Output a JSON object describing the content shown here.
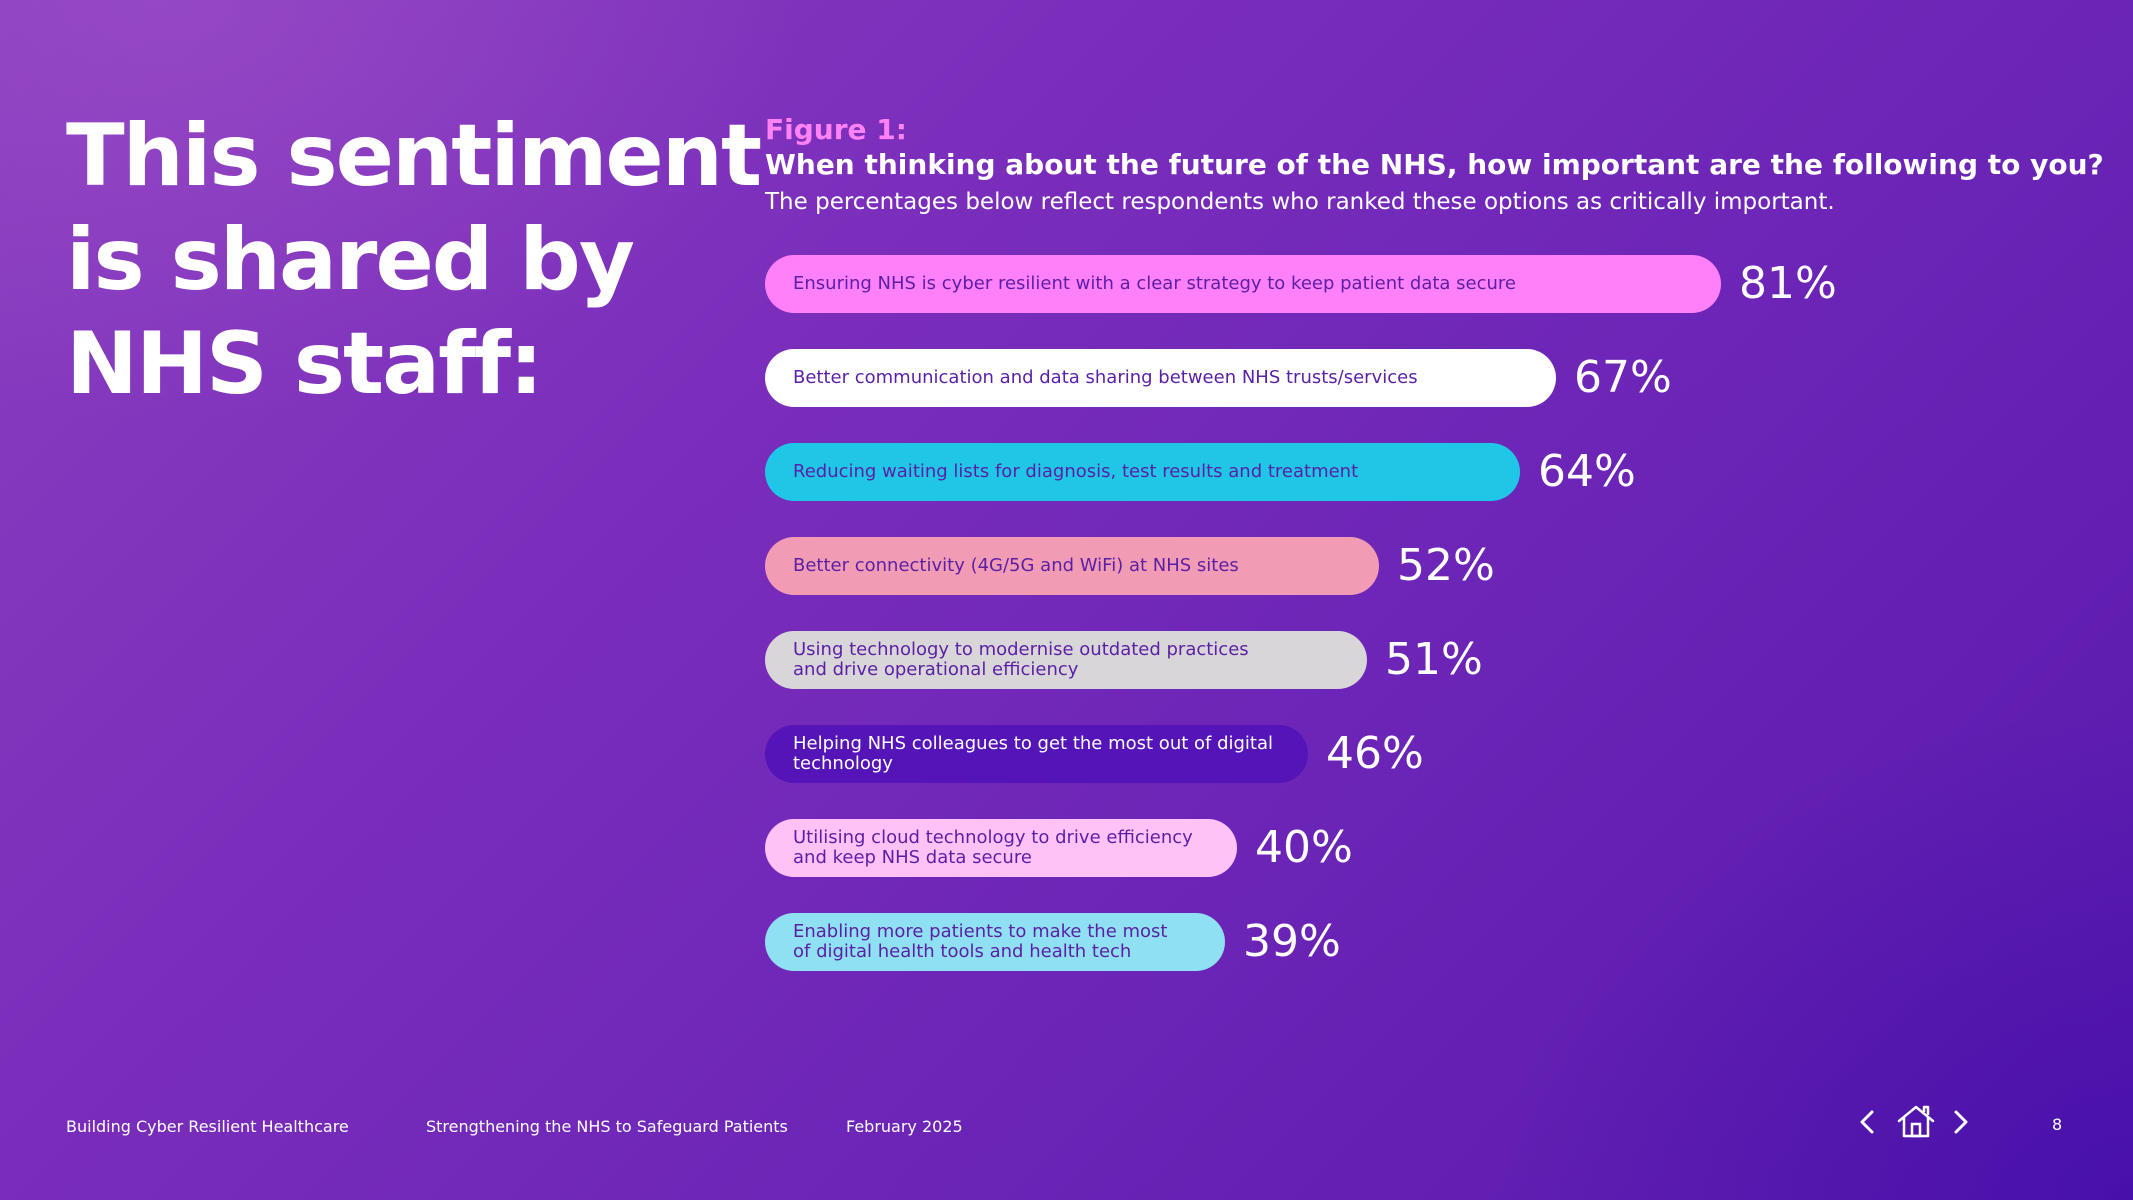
{
  "headline": [
    "This sentiment",
    "is shared by",
    "NHS staff:"
  ],
  "figure": {
    "label": "Figure 1:",
    "question": "When thinking about the future of the NHS, how important are the following to you?",
    "subtitle": "The percentages below reflect respondents who ranked these options as critically important."
  },
  "chart_data": {
    "type": "bar",
    "orientation": "horizontal",
    "unit": "%",
    "categories": [
      "Ensuring NHS is cyber resilient with a clear strategy to keep patient data secure",
      "Better communication and data sharing between NHS trusts/services",
      "Reducing waiting lists for diagnosis, test results and treatment",
      "Better connectivity (4G/5G and WiFi) at NHS sites",
      "Using technology to modernise outdated practices\nand drive operational efficiency",
      "Helping NHS colleagues to get the most out of digital technology",
      "Utilising cloud technology to drive efficiency\nand keep NHS data secure",
      "Enabling more patients to make the most\nof digital health tools and health tech"
    ],
    "values": [
      81,
      67,
      64,
      52,
      51,
      46,
      40,
      39
    ],
    "value_labels": [
      "81%",
      "67%",
      "64%",
      "52%",
      "51%",
      "46%",
      "40%",
      "39%"
    ],
    "bar_colors": [
      "#ff80f9",
      "#ffffff",
      "#1fc6e6",
      "#f29bb4",
      "#d8d6d8",
      "#5414b8",
      "#ffc2f7",
      "#8fe0f2"
    ],
    "label_colors": [
      "#5b1fa6",
      "#5b1fa6",
      "#5b1fa6",
      "#5b1fa6",
      "#5b1fa6",
      "#ffffff",
      "#5b1fa6",
      "#5b1fa6"
    ],
    "xlim": [
      0,
      100
    ],
    "grid": false,
    "legend": "none"
  },
  "footer": {
    "report": "Building Cyber Resilient Healthcare",
    "subtitle": "Strengthening the NHS to Safeguard Patients",
    "date": "February 2025",
    "page": "8"
  },
  "nav": {
    "prev_icon": "chevron-left-icon",
    "home_icon": "home-icon",
    "next_icon": "chevron-right-icon"
  }
}
